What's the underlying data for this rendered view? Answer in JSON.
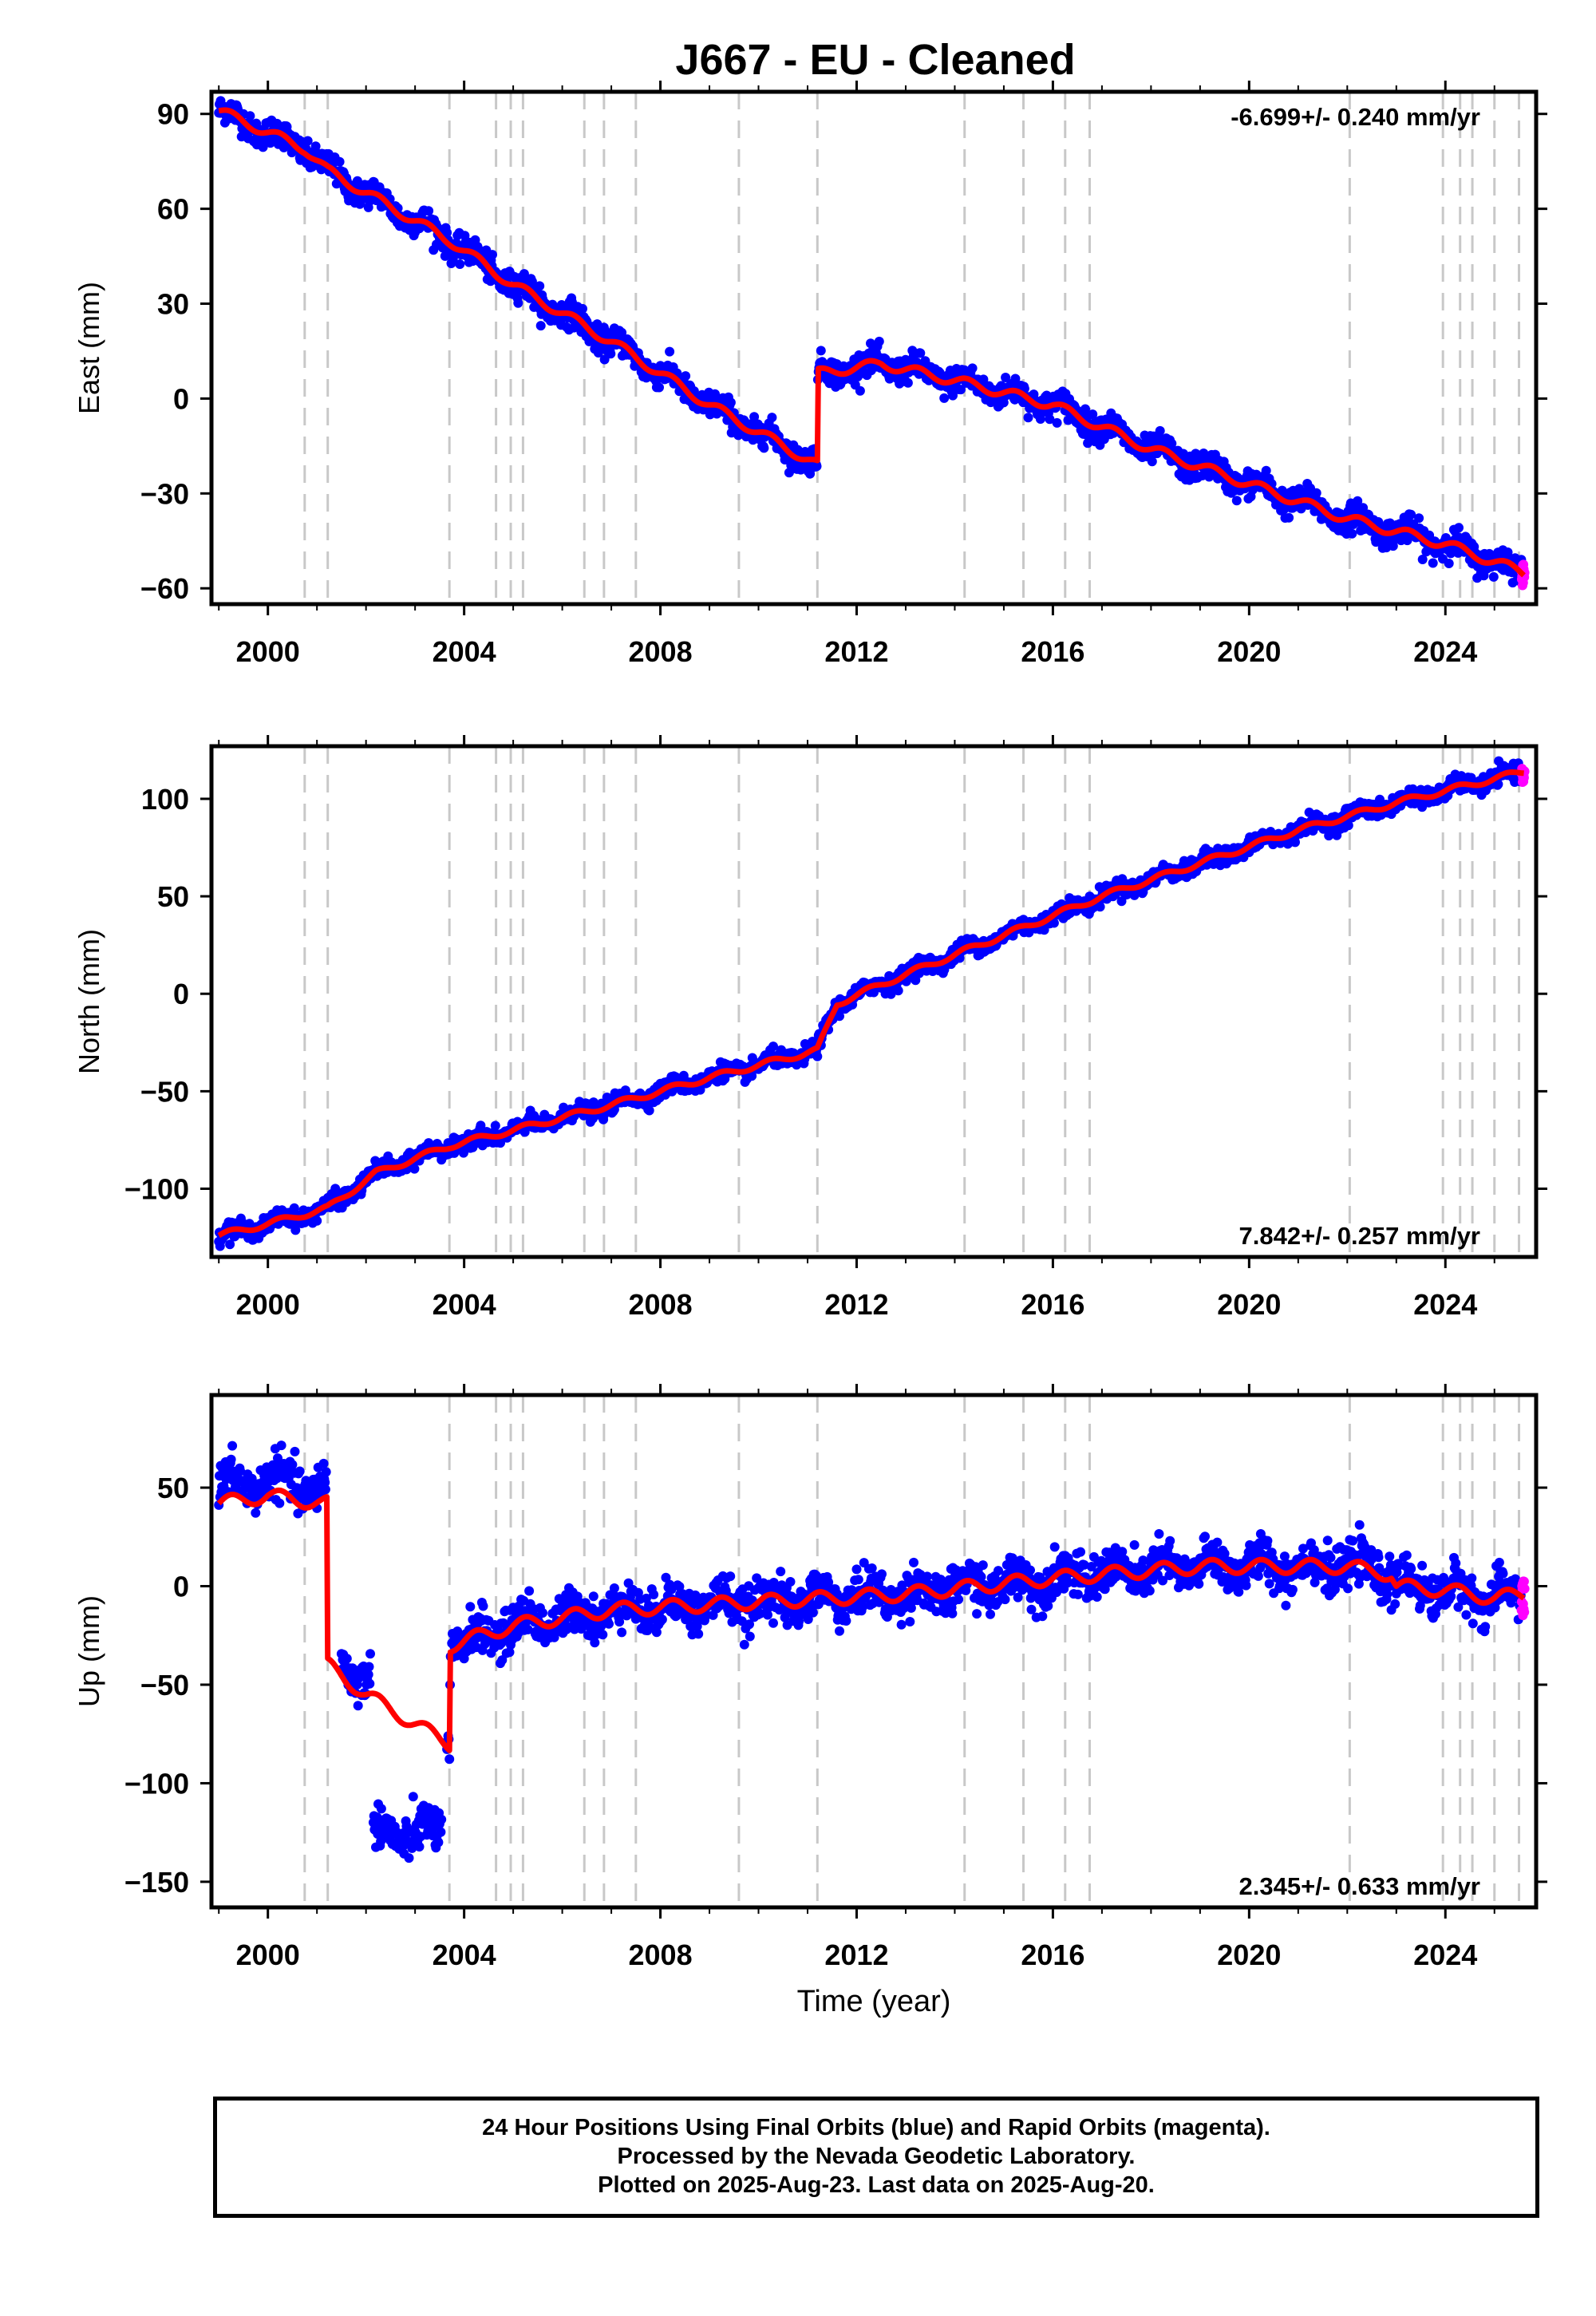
{
  "title": "J667  - EU - Cleaned",
  "footer": {
    "lines": [
      "24 Hour Positions Using Final Orbits (blue) and Rapid Orbits (magenta).",
      "Processed by the Nevada Geodetic Laboratory.",
      "Plotted on 2025-Aug-23. Last data on 2025-Aug-20."
    ]
  },
  "colors": {
    "final_orbits": "#0000ff",
    "rapid_orbits": "#ff00ff",
    "model": "#ff0000",
    "event_lines": "#c8c8c8",
    "frame": "#000000"
  },
  "chart_data": [
    {
      "type": "scatter",
      "ylabel": "East (mm)",
      "xlabel": "",
      "xlim": [
        1998.85,
        2025.85
      ],
      "ylim": [
        -65,
        97
      ],
      "xticks": [
        "2000",
        "2004",
        "2008",
        "2012",
        "2016",
        "2020",
        "2024"
      ],
      "yticks": [
        "90",
        "60",
        "30",
        "0",
        "−30",
        "−60"
      ],
      "rate_label": "-6.699+/- 0.240 mm/yr",
      "rate_position": "top-right",
      "event_lines": [
        2000.75,
        2001.22,
        2003.7,
        2004.65,
        2004.95,
        2005.2,
        2006.45,
        2006.85,
        2007.5,
        2009.6,
        2011.2,
        2014.2,
        2015.4,
        2016.25,
        2016.75,
        2022.05,
        2023.95,
        2024.3,
        2024.55,
        2025.0,
        2025.5
      ],
      "trend": [
        [
          1999.0,
          91
        ],
        [
          2000.75,
          79
        ],
        [
          2001.22,
          72
        ],
        [
          2003.7,
          50
        ],
        [
          2005.0,
          36
        ],
        [
          2007.0,
          18
        ],
        [
          2009.0,
          -2
        ],
        [
          2011.2,
          -21
        ],
        [
          2011.21,
          8
        ],
        [
          2012.5,
          11
        ],
        [
          2014.2,
          5
        ],
        [
          2016.0,
          -2
        ],
        [
          2018.0,
          -16
        ],
        [
          2020.0,
          -27
        ],
        [
          2022.0,
          -38
        ],
        [
          2024.0,
          -46
        ],
        [
          2025.6,
          -55
        ]
      ],
      "series": [
        {
          "name": "Final Orbits",
          "segments": [
            [
              1999.0,
              2011.2
            ],
            [
              2011.21,
              2025.55
            ]
          ],
          "scatter_mm": 3.5
        },
        {
          "name": "Rapid Orbits",
          "segments": [
            [
              2025.55,
              2025.62
            ]
          ],
          "scatter_mm": 4
        }
      ]
    },
    {
      "type": "scatter",
      "ylabel": "North (mm)",
      "xlabel": "",
      "xlim": [
        1998.85,
        2025.85
      ],
      "ylim": [
        -135,
        127
      ],
      "xticks": [
        "2000",
        "2004",
        "2008",
        "2012",
        "2016",
        "2020",
        "2024"
      ],
      "yticks": [
        "100",
        "50",
        "0",
        "−50",
        "−100"
      ],
      "rate_label": "7.842+/- 0.257 mm/yr",
      "rate_position": "bottom-right",
      "event_lines": [
        2000.75,
        2001.22,
        2003.7,
        2004.65,
        2004.95,
        2005.2,
        2006.45,
        2006.85,
        2007.5,
        2009.6,
        2011.2,
        2014.2,
        2015.4,
        2016.25,
        2016.75,
        2022.05,
        2023.95,
        2024.3,
        2024.55,
        2025.0,
        2025.5
      ],
      "trend": [
        [
          1999.0,
          -124
        ],
        [
          2000.0,
          -118
        ],
        [
          2001.22,
          -110
        ],
        [
          2002.2,
          -92
        ],
        [
          2003.7,
          -78
        ],
        [
          2005.0,
          -70
        ],
        [
          2007.0,
          -57
        ],
        [
          2009.0,
          -43
        ],
        [
          2011.2,
          -29
        ],
        [
          2011.6,
          -5
        ],
        [
          2013.0,
          10
        ],
        [
          2015.0,
          30
        ],
        [
          2017.0,
          50
        ],
        [
          2019.0,
          67
        ],
        [
          2021.0,
          84
        ],
        [
          2023.0,
          98
        ],
        [
          2025.6,
          114
        ]
      ],
      "series": [
        {
          "name": "Final Orbits",
          "segments": [
            [
              1999.0,
              2025.55
            ]
          ],
          "scatter_mm": 3.5
        },
        {
          "name": "Rapid Orbits",
          "segments": [
            [
              2025.55,
              2025.62
            ]
          ],
          "scatter_mm": 4
        }
      ]
    },
    {
      "type": "scatter",
      "ylabel": "Up (mm)",
      "xlabel": "Time (year)",
      "xlim": [
        1998.85,
        2025.85
      ],
      "ylim": [
        -163,
        97
      ],
      "xticks": [
        "2000",
        "2004",
        "2008",
        "2012",
        "2016",
        "2020",
        "2024"
      ],
      "yticks": [
        "50",
        "0",
        "−50",
        "−100",
        "−150"
      ],
      "rate_label": "2.345+/- 0.633 mm/yr",
      "rate_position": "bottom-right",
      "event_lines": [
        2000.75,
        2001.22,
        2003.7,
        2004.65,
        2004.95,
        2005.2,
        2006.45,
        2006.85,
        2007.5,
        2009.6,
        2011.2,
        2014.2,
        2015.4,
        2016.25,
        2016.75,
        2022.05,
        2023.95,
        2024.3,
        2024.55,
        2025.0,
        2025.5
      ],
      "trend": [
        [
          1999.0,
          42
        ],
        [
          2000.0,
          46
        ],
        [
          2001.1,
          42
        ],
        [
          2001.2,
          42
        ],
        [
          2001.22,
          -40
        ],
        [
          2002.0,
          -55
        ],
        [
          2003.0,
          -70
        ],
        [
          2003.7,
          -80
        ],
        [
          2003.72,
          -30
        ],
        [
          2005.0,
          -20
        ],
        [
          2007.0,
          -12
        ],
        [
          2010.0,
          -8
        ],
        [
          2013.0,
          -4
        ],
        [
          2016.0,
          4
        ],
        [
          2019.0,
          10
        ],
        [
          2022.0,
          10
        ],
        [
          2022.9,
          6
        ],
        [
          2023.0,
          0
        ],
        [
          2024.0,
          -2
        ],
        [
          2025.0,
          -6
        ],
        [
          2025.6,
          -4
        ]
      ],
      "series": [
        {
          "name": "Final Orbits",
          "segments": [
            [
              1999.0,
              2001.2
            ],
            [
              2001.5,
              2002.1
            ],
            [
              2002.15,
              2003.55
            ],
            [
              2003.65,
              2025.55
            ]
          ],
          "scatter_mm": 9
        },
        {
          "name": "Rapid Orbits",
          "segments": [
            [
              2025.55,
              2025.62
            ]
          ],
          "scatter_mm": 12
        }
      ]
    }
  ]
}
